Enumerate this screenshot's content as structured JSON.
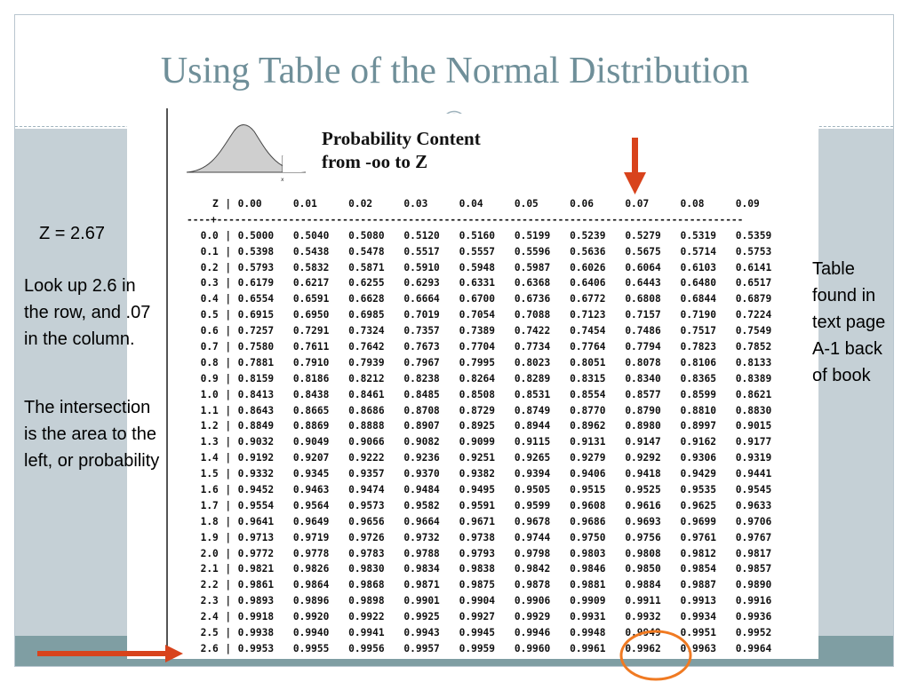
{
  "slide": {
    "title": "Using Table of the Normal Distribution",
    "accent_color": "#6f8f99",
    "panel_color": "#c5d0d6",
    "bar_color": "#7f9ea3"
  },
  "figure": {
    "caption_line1": "Probability Content",
    "caption_line2": "from   -oo to Z",
    "curve_axis_label": "x"
  },
  "ztable": {
    "corner": "Z",
    "columns": [
      "0.00",
      "0.01",
      "0.02",
      "0.03",
      "0.04",
      "0.05",
      "0.06",
      "0.07",
      "0.08",
      "0.09"
    ],
    "rows": [
      {
        "z": "0.0",
        "v": [
          "0.5000",
          "0.5040",
          "0.5080",
          "0.5120",
          "0.5160",
          "0.5199",
          "0.5239",
          "0.5279",
          "0.5319",
          "0.5359"
        ]
      },
      {
        "z": "0.1",
        "v": [
          "0.5398",
          "0.5438",
          "0.5478",
          "0.5517",
          "0.5557",
          "0.5596",
          "0.5636",
          "0.5675",
          "0.5714",
          "0.5753"
        ]
      },
      {
        "z": "0.2",
        "v": [
          "0.5793",
          "0.5832",
          "0.5871",
          "0.5910",
          "0.5948",
          "0.5987",
          "0.6026",
          "0.6064",
          "0.6103",
          "0.6141"
        ]
      },
      {
        "z": "0.3",
        "v": [
          "0.6179",
          "0.6217",
          "0.6255",
          "0.6293",
          "0.6331",
          "0.6368",
          "0.6406",
          "0.6443",
          "0.6480",
          "0.6517"
        ]
      },
      {
        "z": "0.4",
        "v": [
          "0.6554",
          "0.6591",
          "0.6628",
          "0.6664",
          "0.6700",
          "0.6736",
          "0.6772",
          "0.6808",
          "0.6844",
          "0.6879"
        ]
      },
      {
        "z": "0.5",
        "v": [
          "0.6915",
          "0.6950",
          "0.6985",
          "0.7019",
          "0.7054",
          "0.7088",
          "0.7123",
          "0.7157",
          "0.7190",
          "0.7224"
        ]
      },
      {
        "z": "0.6",
        "v": [
          "0.7257",
          "0.7291",
          "0.7324",
          "0.7357",
          "0.7389",
          "0.7422",
          "0.7454",
          "0.7486",
          "0.7517",
          "0.7549"
        ]
      },
      {
        "z": "0.7",
        "v": [
          "0.7580",
          "0.7611",
          "0.7642",
          "0.7673",
          "0.7704",
          "0.7734",
          "0.7764",
          "0.7794",
          "0.7823",
          "0.7852"
        ]
      },
      {
        "z": "0.8",
        "v": [
          "0.7881",
          "0.7910",
          "0.7939",
          "0.7967",
          "0.7995",
          "0.8023",
          "0.8051",
          "0.8078",
          "0.8106",
          "0.8133"
        ]
      },
      {
        "z": "0.9",
        "v": [
          "0.8159",
          "0.8186",
          "0.8212",
          "0.8238",
          "0.8264",
          "0.8289",
          "0.8315",
          "0.8340",
          "0.8365",
          "0.8389"
        ]
      },
      {
        "z": "1.0",
        "v": [
          "0.8413",
          "0.8438",
          "0.8461",
          "0.8485",
          "0.8508",
          "0.8531",
          "0.8554",
          "0.8577",
          "0.8599",
          "0.8621"
        ]
      },
      {
        "z": "1.1",
        "v": [
          "0.8643",
          "0.8665",
          "0.8686",
          "0.8708",
          "0.8729",
          "0.8749",
          "0.8770",
          "0.8790",
          "0.8810",
          "0.8830"
        ]
      },
      {
        "z": "1.2",
        "v": [
          "0.8849",
          "0.8869",
          "0.8888",
          "0.8907",
          "0.8925",
          "0.8944",
          "0.8962",
          "0.8980",
          "0.8997",
          "0.9015"
        ]
      },
      {
        "z": "1.3",
        "v": [
          "0.9032",
          "0.9049",
          "0.9066",
          "0.9082",
          "0.9099",
          "0.9115",
          "0.9131",
          "0.9147",
          "0.9162",
          "0.9177"
        ]
      },
      {
        "z": "1.4",
        "v": [
          "0.9192",
          "0.9207",
          "0.9222",
          "0.9236",
          "0.9251",
          "0.9265",
          "0.9279",
          "0.9292",
          "0.9306",
          "0.9319"
        ]
      },
      {
        "z": "1.5",
        "v": [
          "0.9332",
          "0.9345",
          "0.9357",
          "0.9370",
          "0.9382",
          "0.9394",
          "0.9406",
          "0.9418",
          "0.9429",
          "0.9441"
        ]
      },
      {
        "z": "1.6",
        "v": [
          "0.9452",
          "0.9463",
          "0.9474",
          "0.9484",
          "0.9495",
          "0.9505",
          "0.9515",
          "0.9525",
          "0.9535",
          "0.9545"
        ]
      },
      {
        "z": "1.7",
        "v": [
          "0.9554",
          "0.9564",
          "0.9573",
          "0.9582",
          "0.9591",
          "0.9599",
          "0.9608",
          "0.9616",
          "0.9625",
          "0.9633"
        ]
      },
      {
        "z": "1.8",
        "v": [
          "0.9641",
          "0.9649",
          "0.9656",
          "0.9664",
          "0.9671",
          "0.9678",
          "0.9686",
          "0.9693",
          "0.9699",
          "0.9706"
        ]
      },
      {
        "z": "1.9",
        "v": [
          "0.9713",
          "0.9719",
          "0.9726",
          "0.9732",
          "0.9738",
          "0.9744",
          "0.9750",
          "0.9756",
          "0.9761",
          "0.9767"
        ]
      },
      {
        "z": "2.0",
        "v": [
          "0.9772",
          "0.9778",
          "0.9783",
          "0.9788",
          "0.9793",
          "0.9798",
          "0.9803",
          "0.9808",
          "0.9812",
          "0.9817"
        ]
      },
      {
        "z": "2.1",
        "v": [
          "0.9821",
          "0.9826",
          "0.9830",
          "0.9834",
          "0.9838",
          "0.9842",
          "0.9846",
          "0.9850",
          "0.9854",
          "0.9857"
        ]
      },
      {
        "z": "2.2",
        "v": [
          "0.9861",
          "0.9864",
          "0.9868",
          "0.9871",
          "0.9875",
          "0.9878",
          "0.9881",
          "0.9884",
          "0.9887",
          "0.9890"
        ]
      },
      {
        "z": "2.3",
        "v": [
          "0.9893",
          "0.9896",
          "0.9898",
          "0.9901",
          "0.9904",
          "0.9906",
          "0.9909",
          "0.9911",
          "0.9913",
          "0.9916"
        ]
      },
      {
        "z": "2.4",
        "v": [
          "0.9918",
          "0.9920",
          "0.9922",
          "0.9925",
          "0.9927",
          "0.9929",
          "0.9931",
          "0.9932",
          "0.9934",
          "0.9936"
        ]
      },
      {
        "z": "2.5",
        "v": [
          "0.9938",
          "0.9940",
          "0.9941",
          "0.9943",
          "0.9945",
          "0.9946",
          "0.9948",
          "0.9949",
          "0.9951",
          "0.9952"
        ]
      },
      {
        "z": "2.6",
        "v": [
          "0.9953",
          "0.9955",
          "0.9956",
          "0.9957",
          "0.9959",
          "0.9960",
          "0.9961",
          "0.9962",
          "0.9963",
          "0.9964"
        ]
      }
    ]
  },
  "notes": {
    "z_value": "Z = 2.67",
    "instruction": "Look up 2.6 in the row, and .07 in the column.",
    "explanation": "The intersection is the area to the left, or probability",
    "source": "Table found in text page A-1 back of book"
  },
  "annotations": {
    "arrow_color": "#d8431c",
    "circle_color": "#f07a22",
    "highlight_row": "2.6",
    "highlight_column": "0.07",
    "highlight_value": "0.9962"
  }
}
